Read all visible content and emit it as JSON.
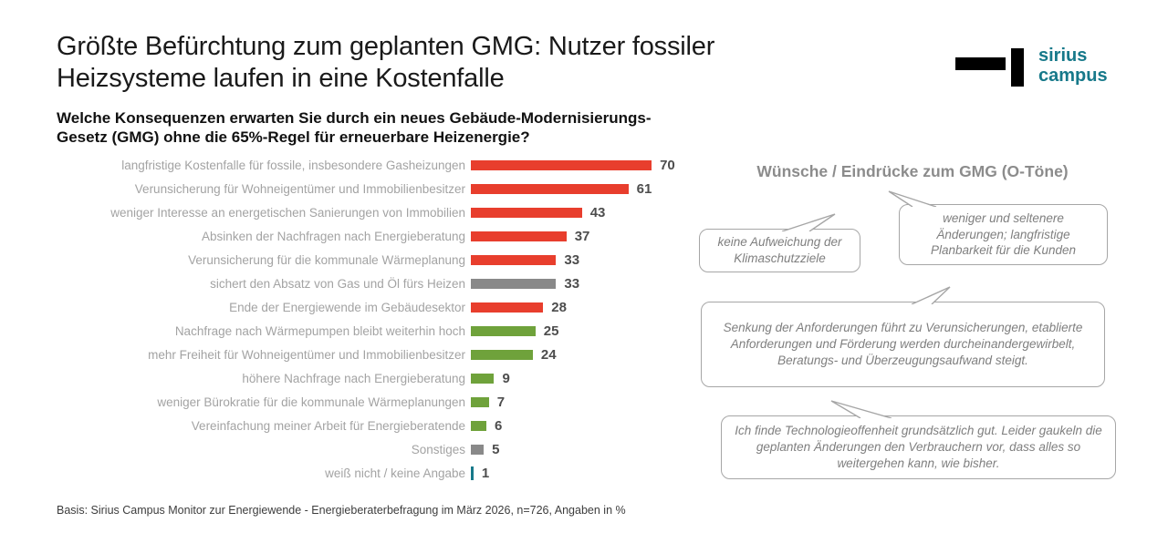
{
  "header": {
    "title": "Größte Befürchtung zum geplanten GMG: Nutzer fossiler\nHeizsysteme laufen in eine Kostenfalle",
    "logo": {
      "name": "sirius-campus",
      "text": "sirius\ncampus",
      "color": "#17798A"
    }
  },
  "question": "Welche Konsequenzen erwarten Sie durch ein neues Gebäude-Modernisierungs-\nGesetz (GMG) ohne die 65%-Regel für erneuerbare Heizenergie?",
  "chart_data": {
    "type": "bar",
    "orientation": "horizontal",
    "title": "Welche Konsequenzen erwarten Sie durch ein neues Gebäude-Modernisierungs-Gesetz (GMG) ohne die 65%-Regel für erneuerbare Heizenergie?",
    "categories": [
      "langfristige Kostenfalle für fossile, insbesondere Gasheizungen",
      "Verunsicherung für Wohneigentümer und Immobilienbesitzer",
      "weniger Interesse an energetischen Sanierungen von Immobilien",
      "Absinken der Nachfragen nach Energieberatung",
      "Verunsicherung für die kommunale Wärmeplanung",
      "sichert den Absatz von Gas und Öl fürs Heizen",
      "Ende der Energiewende im Gebäudesektor",
      "Nachfrage nach Wärmepumpen bleibt weiterhin hoch",
      "mehr Freiheit für Wohneigentümer und Immobilienbesitzer",
      "höhere Nachfrage nach Energieberatung",
      "weniger Bürokratie für die kommunale Wärmeplanungen",
      "Vereinfachung meiner Arbeit für Energieberatende",
      "Sonstiges",
      "weiß nicht / keine Angabe"
    ],
    "values": [
      70,
      61,
      43,
      37,
      33,
      33,
      28,
      25,
      24,
      9,
      7,
      6,
      5,
      1
    ],
    "bar_colors": [
      "#E83E2D",
      "#E83E2D",
      "#E83E2D",
      "#E83E2D",
      "#E83E2D",
      "#898989",
      "#E83E2D",
      "#6FA23B",
      "#6FA23B",
      "#6FA23B",
      "#6FA23B",
      "#6FA23B",
      "#898989",
      "#17798A"
    ],
    "xlim": [
      0,
      75
    ],
    "grid": false,
    "value_labels": true,
    "unit": "%"
  },
  "quotes": {
    "title": "Wünsche / Eindrücke zum GMG (O-Töne)",
    "bubbles": [
      {
        "text": "keine Aufweichung der Klimaschutzziele"
      },
      {
        "text": "weniger und seltenere Änderungen; langfristige Planbarkeit für die Kunden"
      },
      {
        "text": "Senkung der Anforderungen führt zu Verunsicherungen, etablierte Anforderungen und Förderung werden durcheinandergewirbelt, Beratungs- und Überzeugungsaufwand steigt."
      },
      {
        "text": "Ich finde Technologieoffenheit grundsätzlich gut. Leider gaukeln die geplanten Änderungen den Verbrauchern vor, dass alles so weitergehen kann, wie bisher."
      }
    ]
  },
  "footer": "Basis: Sirius Campus Monitor zur Energiewende - Energieberaterbefragung im März 2026, n=726, Angaben in %"
}
